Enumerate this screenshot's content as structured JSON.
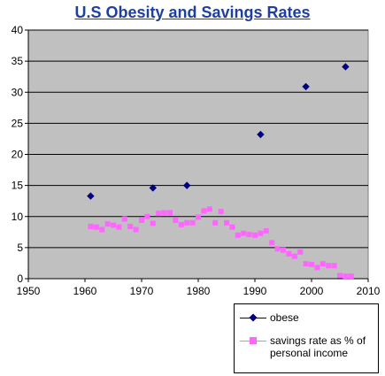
{
  "chart_data": {
    "type": "scatter",
    "title": "U.S Obesity and Savings Rates",
    "xlabel": "",
    "ylabel": "",
    "xlim": [
      1950,
      2010
    ],
    "ylim": [
      0,
      40
    ],
    "x_ticks": [
      1950,
      1960,
      1970,
      1980,
      1990,
      2000,
      2010
    ],
    "y_ticks": [
      0,
      5,
      10,
      15,
      20,
      25,
      30,
      35,
      40
    ],
    "grid": "horizontal",
    "plot_background": "#c0c0c0",
    "legend_position": "bottom-right",
    "series": [
      {
        "name": "obese",
        "marker": "diamond",
        "color": "#000080",
        "points": [
          [
            1961,
            13.3
          ],
          [
            1972,
            14.6
          ],
          [
            1978,
            15.0
          ],
          [
            1991,
            23.2
          ],
          [
            1999,
            30.9
          ],
          [
            2006,
            34.1
          ]
        ]
      },
      {
        "name": "savings rate as % of personal income",
        "marker": "square",
        "color": "#ff66ff",
        "points": [
          [
            1961,
            8.4
          ],
          [
            1962,
            8.3
          ],
          [
            1963,
            7.9
          ],
          [
            1964,
            8.8
          ],
          [
            1965,
            8.6
          ],
          [
            1966,
            8.3
          ],
          [
            1967,
            9.6
          ],
          [
            1968,
            8.4
          ],
          [
            1969,
            7.9
          ],
          [
            1970,
            9.4
          ],
          [
            1971,
            10.0
          ],
          [
            1972,
            8.9
          ],
          [
            1973,
            10.5
          ],
          [
            1974,
            10.6
          ],
          [
            1975,
            10.6
          ],
          [
            1976,
            9.4
          ],
          [
            1977,
            8.7
          ],
          [
            1978,
            9.0
          ],
          [
            1979,
            9.0
          ],
          [
            1980,
            9.9
          ],
          [
            1981,
            10.9
          ],
          [
            1982,
            11.2
          ],
          [
            1983,
            9.0
          ],
          [
            1984,
            10.8
          ],
          [
            1985,
            9.0
          ],
          [
            1986,
            8.3
          ],
          [
            1987,
            7.0
          ],
          [
            1988,
            7.3
          ],
          [
            1989,
            7.1
          ],
          [
            1990,
            7.0
          ],
          [
            1991,
            7.3
          ],
          [
            1992,
            7.7
          ],
          [
            1993,
            5.8
          ],
          [
            1994,
            4.8
          ],
          [
            1995,
            4.6
          ],
          [
            1996,
            4.0
          ],
          [
            1997,
            3.6
          ],
          [
            1998,
            4.3
          ],
          [
            1999,
            2.4
          ],
          [
            2000,
            2.3
          ],
          [
            2001,
            1.8
          ],
          [
            2002,
            2.4
          ],
          [
            2003,
            2.1
          ],
          [
            2004,
            2.1
          ],
          [
            2005,
            0.5
          ],
          [
            2006,
            0.4
          ],
          [
            2007,
            0.4
          ]
        ]
      }
    ]
  }
}
